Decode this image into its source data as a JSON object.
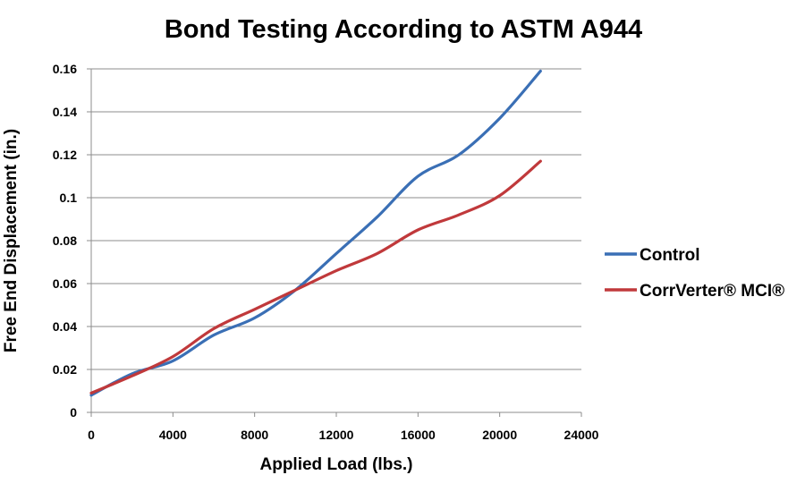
{
  "chart_data": {
    "type": "line",
    "title": "Bond Testing According to ASTM A944",
    "xlabel": "Applied Load (lbs.)",
    "ylabel": "Free End Displacement (in.)",
    "xlim": [
      0,
      24000
    ],
    "ylim": [
      0,
      0.16
    ],
    "x_ticks": [
      0,
      4000,
      8000,
      12000,
      16000,
      20000,
      24000
    ],
    "x_tick_labels": [
      "0",
      "4000",
      "8000",
      "12000",
      "16000",
      "20000",
      "24000"
    ],
    "y_ticks": [
      0,
      0.02,
      0.04,
      0.06,
      0.08,
      0.1,
      0.12,
      0.14,
      0.16
    ],
    "y_tick_labels": [
      "0",
      "0.02",
      "0.04",
      "0.06",
      "0.08",
      "0.1",
      "0.12",
      "0.14",
      "0.16"
    ],
    "grid": "horizontal",
    "legend_position": "right",
    "series": [
      {
        "name": "Control",
        "color": "#3a6fb5",
        "x": [
          0,
          2000,
          4000,
          6000,
          8000,
          10000,
          12000,
          14000,
          16000,
          18000,
          20000,
          22000
        ],
        "y": [
          0.008,
          0.018,
          0.024,
          0.036,
          0.044,
          0.057,
          0.074,
          0.091,
          0.11,
          0.12,
          0.137,
          0.159
        ]
      },
      {
        "name": "CorrVerter® MCI®",
        "color": "#c0393b",
        "x": [
          0,
          2000,
          4000,
          6000,
          8000,
          10000,
          12000,
          14000,
          16000,
          18000,
          20000,
          22000
        ],
        "y": [
          0.009,
          0.017,
          0.026,
          0.039,
          0.048,
          0.057,
          0.066,
          0.074,
          0.085,
          0.092,
          0.101,
          0.117
        ]
      }
    ]
  }
}
